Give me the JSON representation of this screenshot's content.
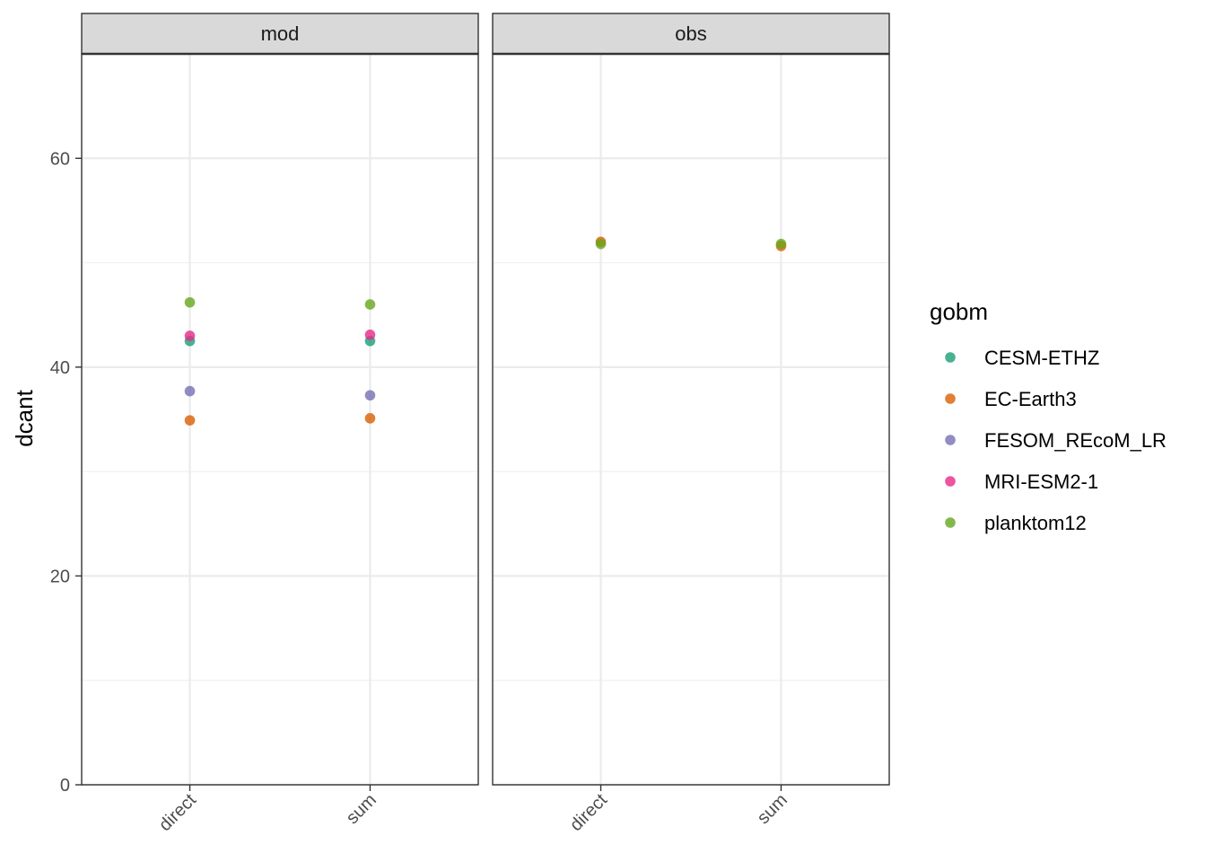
{
  "chart_data": {
    "type": "scatter",
    "ylabel": "dcant",
    "ylim": [
      0,
      70
    ],
    "y_major_ticks": [
      0,
      20,
      40,
      60
    ],
    "y_minor_ticks": [
      10,
      30,
      50
    ],
    "categories": [
      "direct",
      "sum"
    ],
    "panels": [
      {
        "name": "mod",
        "series": [
          {
            "name": "CESM-ETHZ",
            "values": [
              42.5,
              42.5
            ]
          },
          {
            "name": "EC-Earth3",
            "values": [
              34.9,
              35.1
            ]
          },
          {
            "name": "FESOM_REcoM_LR",
            "values": [
              37.7,
              37.3
            ]
          },
          {
            "name": "MRI-ESM2-1",
            "values": [
              43.0,
              43.1
            ]
          },
          {
            "name": "planktom12",
            "values": [
              46.2,
              46.0
            ]
          }
        ]
      },
      {
        "name": "obs",
        "series": [
          {
            "name": "EC-Earth3",
            "values": [
              52.0,
              51.6
            ]
          },
          {
            "name": "planktom12",
            "values": [
              51.8,
              51.8
            ]
          }
        ]
      }
    ],
    "legend": {
      "title": "gobm",
      "position": "right",
      "entries": [
        {
          "name": "CESM-ETHZ",
          "color": "#1B9E77"
        },
        {
          "name": "EC-Earth3",
          "color": "#D95F02"
        },
        {
          "name": "FESOM_REcoM_LR",
          "color": "#7570B3"
        },
        {
          "name": "MRI-ESM2-1",
          "color": "#E7298A"
        },
        {
          "name": "planktom12",
          "color": "#66A61E"
        }
      ]
    },
    "grid": true
  }
}
